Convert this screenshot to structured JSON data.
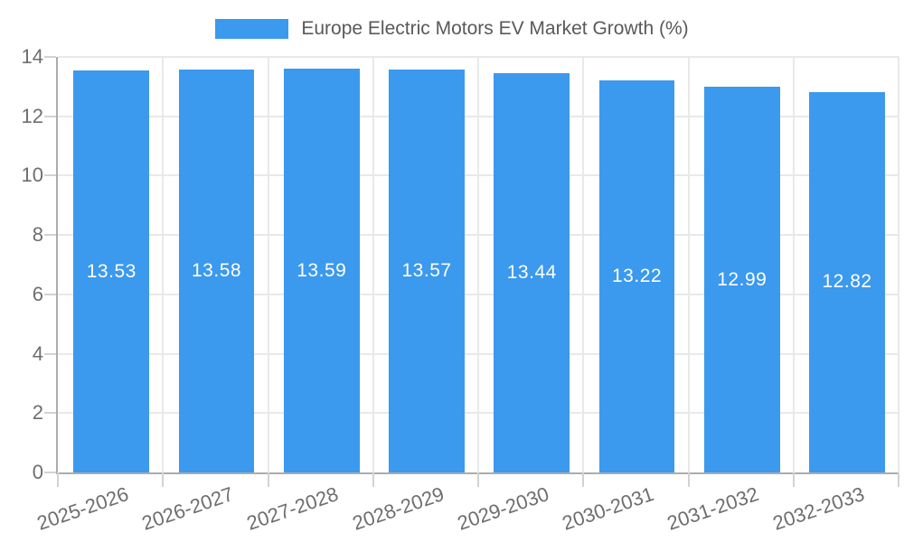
{
  "chart_data": {
    "type": "bar",
    "title": "Europe Electric Motors EV Market Growth (%)",
    "categories": [
      "2025-2026",
      "2026-2027",
      "2027-2028",
      "2028-2029",
      "2029-2030",
      "2030-2031",
      "2031-2032",
      "2032-2033"
    ],
    "series": [
      {
        "name": "Europe Electric Motors EV Market Growth (%)",
        "values": [
          13.53,
          13.58,
          13.59,
          13.57,
          13.44,
          13.22,
          12.99,
          12.82
        ]
      }
    ],
    "value_labels": [
      "13.53",
      "13.58",
      "13.59",
      "13.57",
      "13.44",
      "13.22",
      "12.99",
      "12.82"
    ],
    "xlabel": "",
    "ylabel": "",
    "ylim": [
      0,
      14
    ],
    "yticks": [
      0,
      2,
      4,
      6,
      8,
      10,
      12,
      14
    ],
    "ytick_step": 2,
    "grid": true,
    "legend_position": "top",
    "value_label_position": "center",
    "colors": {
      "bar": "#3B99EE",
      "value_label": "#FFFFFF",
      "axis_line": "#ACACAC",
      "gridline": "#E9E9E9",
      "tick_mark": "#D2D2D2",
      "tick_label": "#6E6E6E",
      "legend_text": "#595959",
      "background": "#FFFFFF"
    }
  }
}
